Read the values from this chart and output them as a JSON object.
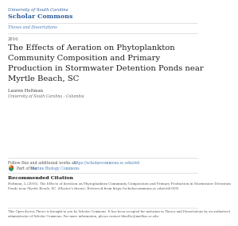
{
  "bg_color": "#ffffff",
  "header_line1": "University of South Carolina",
  "header_line2": "Scholar Commons",
  "header_color": "#2b5a9e",
  "nav_text": "Theses and Dissertations",
  "nav_color": "#4a7ab5",
  "year": "2016",
  "title_line1": "The Effects of Aeration on Phytoplankton",
  "title_line2": "Community Composition and Primary",
  "title_line3": "Production in Stormwater Detention Ponds near",
  "title_line4": "Myrtle Beach, SC",
  "title_color": "#1a1a1a",
  "author_name": "Lauren Heltman",
  "author_affil": "University of South Carolina - Columbia",
  "author_color": "#444444",
  "affil_color": "#666666",
  "follow_text": "Follow this and additional works at: ",
  "follow_link": "https://scholarcommons.sc.edu/etd",
  "part_text": "Part of the ",
  "part_link": "Marine Biology Commons",
  "link_color": "#4a7ab5",
  "rec_cite_header": "Recommended Citation",
  "rec_cite_body1": "Heltman, L.(2016). The Effects of Aeration on Phytoplankton Community Composition and Primary Production in Stormwater Detention",
  "rec_cite_body2": "Ponds near Myrtle Beach, SC. (Master’s thesis). Retrieved from https://scholarcommons.sc.edu/etd/3395",
  "footer_text1": "This Open Access Thesis is brought to you by Scholar Commons. It has been accepted for inclusion in Theses and Dissertations by an authorized",
  "footer_text2": "administrator of Scholar Commons. For more information, please contact libsclbc@mailbox.sc.edu.",
  "small_text_color": "#555555",
  "line_color": "#cccccc",
  "icon_colors": [
    "#e63333",
    "#f5a623",
    "#4a7ab5",
    "#2e9e2e"
  ]
}
